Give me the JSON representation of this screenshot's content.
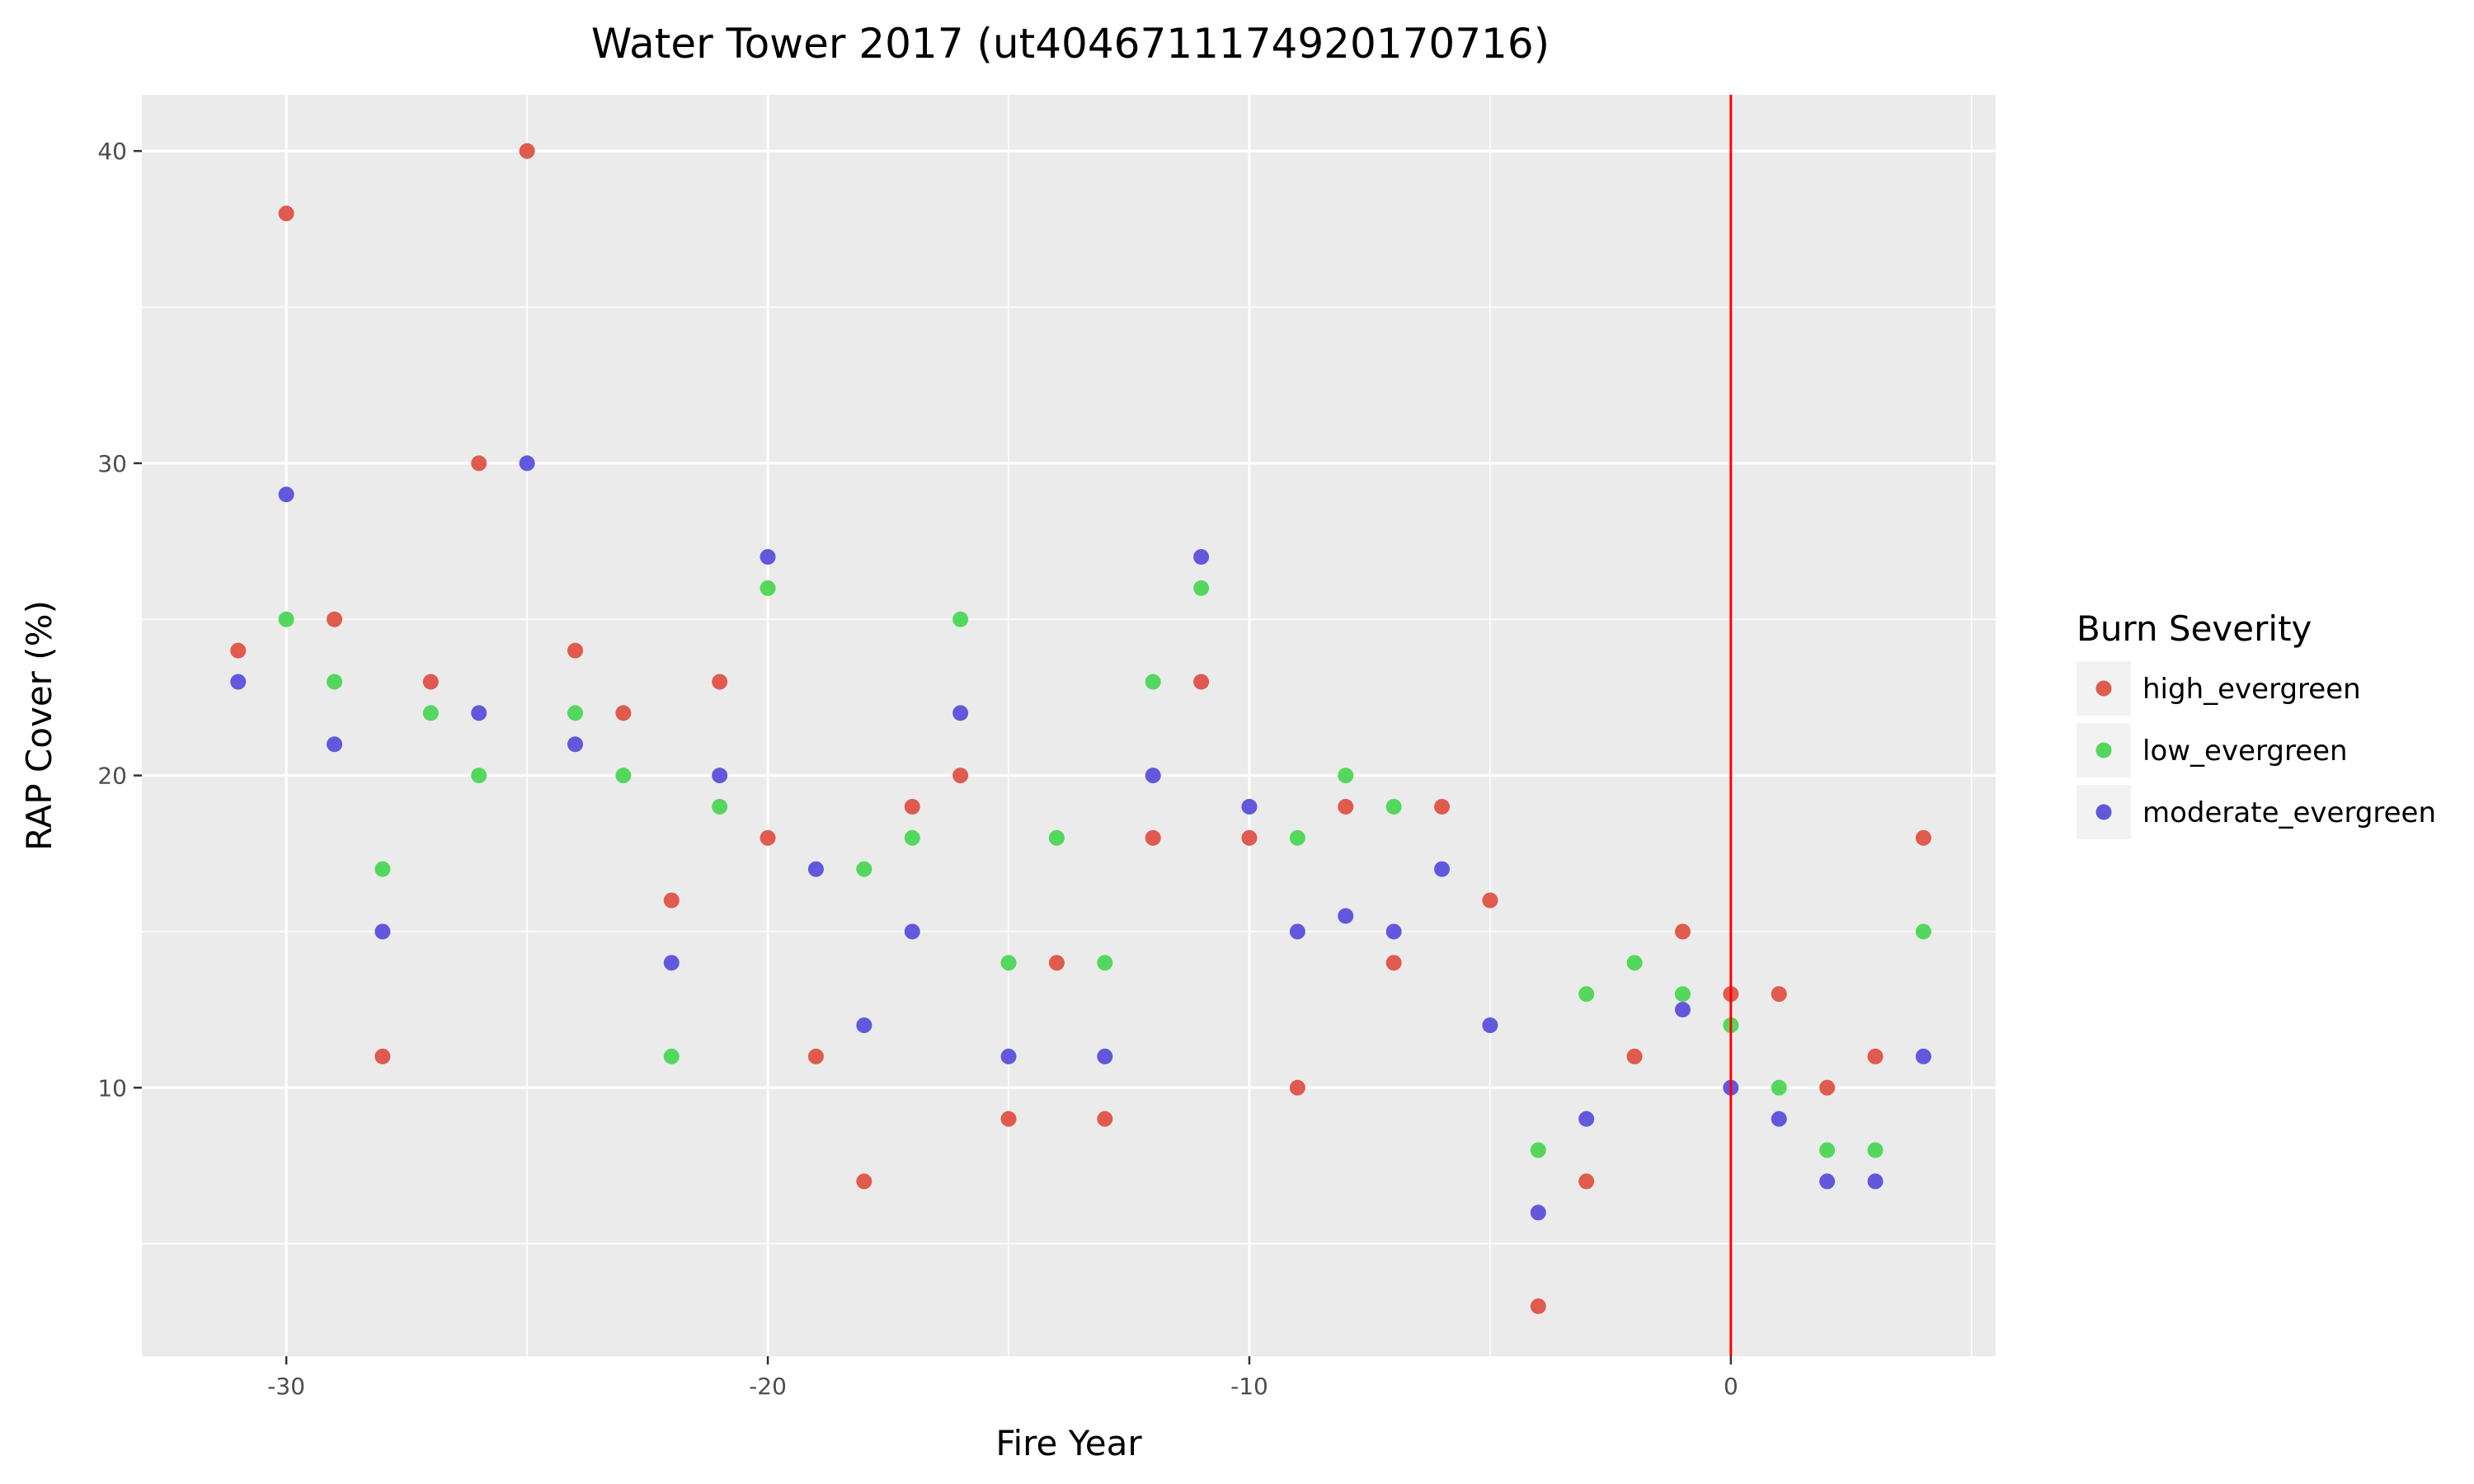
{
  "chart_data": {
    "type": "scatter",
    "title": "Water Tower 2017 (ut4046711174920170716)",
    "xlabel": "Fire Year",
    "ylabel": "RAP Cover (%)",
    "xlim": [
      -33,
      5.5
    ],
    "ylim": [
      1.4,
      41.8
    ],
    "x_ticks": [
      -30,
      -20,
      -10,
      0
    ],
    "y_ticks": [
      10,
      20,
      30,
      40
    ],
    "x_tick_labels": [
      "-30",
      "-20",
      "-10",
      "0"
    ],
    "y_tick_labels": [
      "10",
      "20",
      "30",
      "40"
    ],
    "grid": true,
    "reference_line": {
      "axis": "x",
      "value": 0,
      "color": "#ff0000"
    },
    "legend": {
      "title": "Burn Severity",
      "placement": "right"
    },
    "series": [
      {
        "name": "high_evergreen",
        "color": "#e05a4e",
        "points": [
          [
            -31,
            24
          ],
          [
            -30,
            38
          ],
          [
            -29,
            25
          ],
          [
            -28,
            11
          ],
          [
            -27,
            23
          ],
          [
            -26,
            30
          ],
          [
            -25,
            40
          ],
          [
            -24,
            24
          ],
          [
            -23,
            22
          ],
          [
            -22,
            16
          ],
          [
            -21,
            23
          ],
          [
            -20,
            18
          ],
          [
            -19,
            11
          ],
          [
            -18,
            7
          ],
          [
            -17,
            19
          ],
          [
            -16,
            20
          ],
          [
            -15,
            9
          ],
          [
            -14,
            14
          ],
          [
            -13,
            9
          ],
          [
            -12,
            18
          ],
          [
            -11,
            23
          ],
          [
            -10,
            18
          ],
          [
            -9,
            10
          ],
          [
            -8,
            19
          ],
          [
            -7,
            14
          ],
          [
            -6,
            19
          ],
          [
            -5,
            16
          ],
          [
            -4,
            3
          ],
          [
            -3,
            7
          ],
          [
            -2,
            11
          ],
          [
            -1,
            15
          ],
          [
            0,
            13
          ],
          [
            1,
            13
          ],
          [
            2,
            10
          ],
          [
            3,
            11
          ],
          [
            4,
            18
          ]
        ]
      },
      {
        "name": "low_evergreen",
        "color": "#53d85d",
        "points": [
          [
            -30,
            25
          ],
          [
            -29,
            23
          ],
          [
            -28,
            17
          ],
          [
            -27,
            22
          ],
          [
            -26,
            20
          ],
          [
            -24,
            22
          ],
          [
            -23,
            20
          ],
          [
            -22,
            11
          ],
          [
            -21,
            19
          ],
          [
            -20,
            26
          ],
          [
            -18,
            17
          ],
          [
            -17,
            18
          ],
          [
            -16,
            25
          ],
          [
            -15,
            14
          ],
          [
            -14,
            18
          ],
          [
            -13,
            14
          ],
          [
            -12,
            23
          ],
          [
            -11,
            26
          ],
          [
            -9,
            18
          ],
          [
            -8,
            20
          ],
          [
            -7,
            19
          ],
          [
            -4,
            8
          ],
          [
            -3,
            13
          ],
          [
            -2,
            14
          ],
          [
            -1,
            13
          ],
          [
            0,
            12
          ],
          [
            1,
            10
          ],
          [
            2,
            8
          ],
          [
            3,
            8
          ],
          [
            4,
            15
          ]
        ]
      },
      {
        "name": "moderate_evergreen",
        "color": "#6258dd",
        "points": [
          [
            -31,
            23
          ],
          [
            -30,
            29
          ],
          [
            -29,
            21
          ],
          [
            -28,
            15
          ],
          [
            -26,
            22
          ],
          [
            -25,
            30
          ],
          [
            -24,
            21
          ],
          [
            -22,
            14
          ],
          [
            -21,
            20
          ],
          [
            -20,
            27
          ],
          [
            -19,
            17
          ],
          [
            -18,
            12
          ],
          [
            -17,
            15
          ],
          [
            -16,
            22
          ],
          [
            -15,
            11
          ],
          [
            -13,
            11
          ],
          [
            -12,
            20
          ],
          [
            -11,
            27
          ],
          [
            -10,
            19
          ],
          [
            -9,
            15
          ],
          [
            -8,
            15.5
          ],
          [
            -7,
            15
          ],
          [
            -6,
            17
          ],
          [
            -5,
            12
          ],
          [
            -4,
            6
          ],
          [
            -3,
            9
          ],
          [
            -1,
            12.5
          ],
          [
            0,
            10
          ],
          [
            1,
            9
          ],
          [
            2,
            7
          ],
          [
            3,
            7
          ],
          [
            4,
            11
          ]
        ]
      }
    ]
  }
}
